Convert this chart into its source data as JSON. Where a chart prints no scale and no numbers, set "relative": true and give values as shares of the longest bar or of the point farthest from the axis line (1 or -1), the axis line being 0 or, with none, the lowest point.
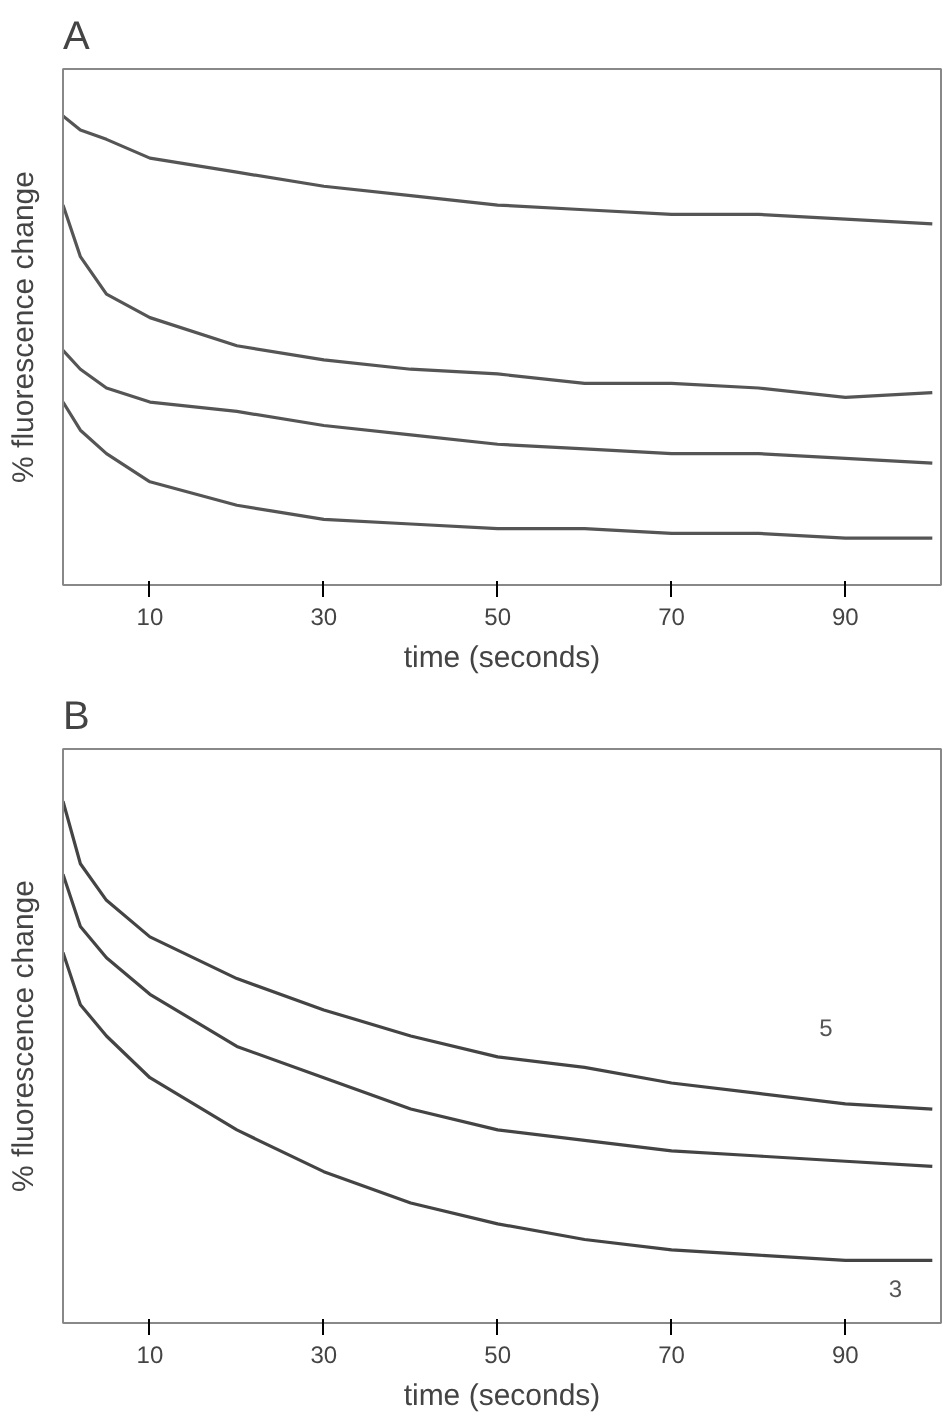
{
  "chart_data": [
    {
      "type": "line",
      "title": "A",
      "xlabel": "time (seconds)",
      "ylabel": "% fluorescence change",
      "relative": true,
      "xlim": [
        0,
        101
      ],
      "xticks": [
        10,
        30,
        50,
        70,
        90
      ],
      "tick_labels": "x",
      "grid": false,
      "marker": "none",
      "line_style": "solid",
      "x": [
        0,
        2,
        5,
        10,
        20,
        30,
        40,
        50,
        60,
        70,
        80,
        90,
        100
      ],
      "series": [
        {
          "color": "#555555",
          "values": [
            1.0,
            0.97,
            0.95,
            0.91,
            0.88,
            0.85,
            0.83,
            0.81,
            0.8,
            0.79,
            0.79,
            0.78,
            0.77
          ]
        },
        {
          "color": "#555555",
          "values": [
            0.81,
            0.7,
            0.62,
            0.57,
            0.51,
            0.48,
            0.46,
            0.45,
            0.43,
            0.43,
            0.42,
            0.4,
            0.41
          ]
        },
        {
          "color": "#555555",
          "values": [
            0.5,
            0.46,
            0.42,
            0.39,
            0.37,
            0.34,
            0.32,
            0.3,
            0.29,
            0.28,
            0.28,
            0.27,
            0.26
          ]
        },
        {
          "color": "#555555",
          "values": [
            0.39,
            0.33,
            0.28,
            0.22,
            0.17,
            0.14,
            0.13,
            0.12,
            0.12,
            0.11,
            0.11,
            0.1,
            0.1
          ]
        }
      ]
    },
    {
      "type": "line",
      "title": "B",
      "xlabel": "time (seconds)",
      "ylabel": "% fluorescence change",
      "relative": true,
      "xlim": [
        0,
        101
      ],
      "xticks": [
        10,
        30,
        50,
        70,
        90
      ],
      "tick_labels": "x",
      "grid": false,
      "marker": "none",
      "line_style": "solid",
      "x": [
        0,
        2,
        5,
        10,
        20,
        30,
        40,
        50,
        60,
        70,
        80,
        90,
        100
      ],
      "series": [
        {
          "color": "#444444",
          "values": [
            1.0,
            0.88,
            0.81,
            0.74,
            0.66,
            0.6,
            0.55,
            0.51,
            0.49,
            0.46,
            0.44,
            0.42,
            0.41
          ]
        },
        {
          "color": "#444444",
          "values": [
            0.86,
            0.76,
            0.7,
            0.63,
            0.53,
            0.47,
            0.41,
            0.37,
            0.35,
            0.33,
            0.32,
            0.31,
            0.3
          ]
        },
        {
          "color": "#444444",
          "values": [
            0.71,
            0.61,
            0.55,
            0.47,
            0.37,
            0.29,
            0.23,
            0.19,
            0.16,
            0.14,
            0.13,
            0.12,
            0.12
          ]
        }
      ],
      "annotations": [
        "5",
        "3"
      ]
    }
  ]
}
